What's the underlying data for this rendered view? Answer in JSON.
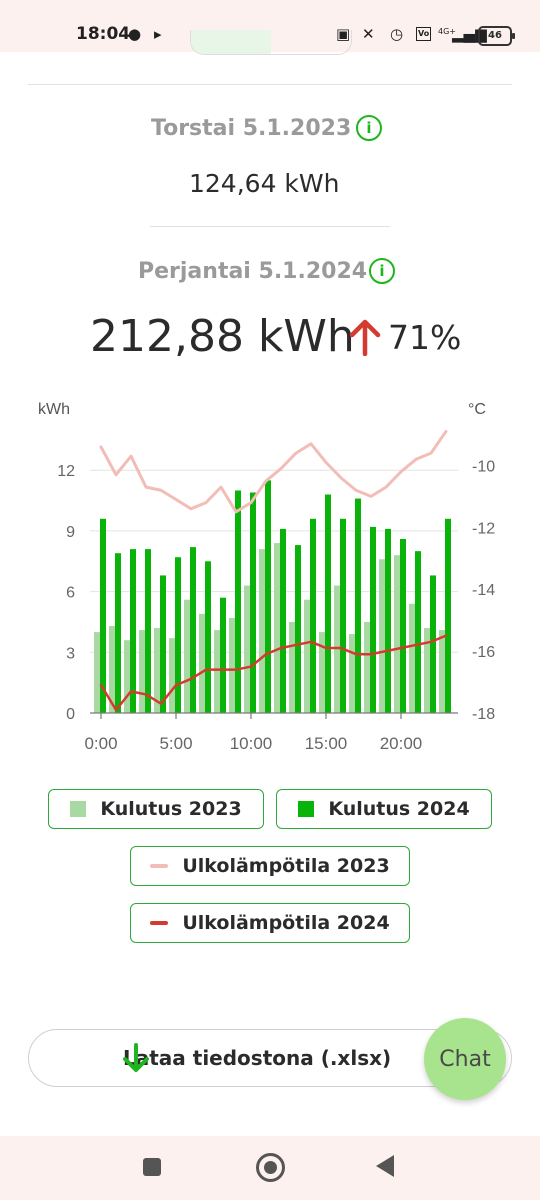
{
  "status_bar": {
    "time": "18:04",
    "battery": "46",
    "network": "4G+",
    "icons": [
      "chat-bubble-icon",
      "play-icon",
      "nfc-icon",
      "mute-icon",
      "alarm-icon",
      "volte-icon",
      "signal-icon",
      "battery-icon"
    ]
  },
  "comparison": {
    "day1": {
      "title": "Torstai 5.1.2023",
      "value": "124,64 kWh"
    },
    "day2": {
      "title": "Perjantai 5.1.2024",
      "value": "212,88 kWh",
      "change": "71%",
      "change_direction": "up"
    }
  },
  "colors": {
    "green": "#0ab30a",
    "light_green": "#a9d9a3",
    "red": "#d43a2f",
    "pink": "#f2bdb6",
    "accent": "#1fb51f"
  },
  "chart_data": {
    "type": "bar",
    "x": [
      0,
      1,
      2,
      3,
      4,
      5,
      6,
      7,
      8,
      9,
      10,
      11,
      12,
      13,
      14,
      15,
      16,
      17,
      18,
      19,
      20,
      21,
      22,
      23
    ],
    "x_ticks": [
      "0:00",
      "5:00",
      "10:00",
      "15:00",
      "20:00"
    ],
    "x_tick_values": [
      0,
      5,
      10,
      15,
      20
    ],
    "y_left_label": "kWh",
    "y_right_label": "°C",
    "y_left_ticks": [
      "0",
      "3",
      "6",
      "9",
      "12"
    ],
    "y_left_tick_values": [
      0,
      3,
      6,
      9,
      12
    ],
    "y_left_lim": [
      0,
      13
    ],
    "y_right_ticks": [
      "-10",
      "-12",
      "-14",
      "-16",
      "-18"
    ],
    "y_right_tick_values": [
      -10,
      -12,
      -14,
      -16,
      -18
    ],
    "y_right_lim": [
      -18,
      -9.5
    ],
    "grid": "horizontal",
    "series": [
      {
        "name": "Kulutus 2023",
        "kind": "bar",
        "color": "#a9d9a3",
        "values": [
          4.0,
          4.3,
          3.6,
          4.1,
          4.2,
          3.7,
          5.6,
          4.9,
          4.1,
          4.7,
          6.3,
          8.1,
          8.4,
          4.5,
          5.6,
          4.0,
          6.3,
          3.9,
          4.5,
          7.6,
          7.8,
          5.4,
          4.2,
          4.1
        ]
      },
      {
        "name": "Kulutus 2024",
        "kind": "bar",
        "color": "#0ab30a",
        "values": [
          9.6,
          7.9,
          8.1,
          8.1,
          6.8,
          7.7,
          8.2,
          7.5,
          5.7,
          11.0,
          10.9,
          11.5,
          9.1,
          8.3,
          9.6,
          10.8,
          9.6,
          10.6,
          9.2,
          9.1,
          8.6,
          8.0,
          6.8,
          9.6
        ]
      },
      {
        "name": "Ulkolämpötila 2023",
        "kind": "line",
        "axis": "right",
        "color": "#f2bdb6",
        "values": [
          -9.4,
          -10.3,
          -9.7,
          -10.7,
          -10.8,
          -11.1,
          -11.4,
          -11.2,
          -10.7,
          -11.5,
          -11.2,
          -10.5,
          -10.1,
          -9.6,
          -9.3,
          -9.9,
          -10.4,
          -10.8,
          -11.0,
          -10.7,
          -10.2,
          -9.8,
          -9.6,
          -8.9
        ]
      },
      {
        "name": "Ulkolämpötila 2024",
        "kind": "line",
        "axis": "right",
        "color": "#d43a2f",
        "values": [
          -17.1,
          -17.9,
          -17.3,
          -17.4,
          -17.7,
          -17.1,
          -16.9,
          -16.6,
          -16.6,
          -16.6,
          -16.5,
          -16.1,
          -15.9,
          -15.8,
          -15.7,
          -15.9,
          -15.9,
          -16.1,
          -16.1,
          -16.0,
          -15.9,
          -15.8,
          -15.7,
          -15.5
        ]
      }
    ],
    "legend_placement": "bottom"
  },
  "legend": {
    "items": [
      {
        "label": "Kulutus 2023",
        "swatch": "box",
        "color": "#a9d9a3"
      },
      {
        "label": "Kulutus 2024",
        "swatch": "box",
        "color": "#0ab30a"
      },
      {
        "label": "Ulkolämpötila 2023",
        "swatch": "line",
        "color": "#f2bdb6"
      },
      {
        "label": "Ulkolämpötila 2024",
        "swatch": "line",
        "color": "#d43a2f"
      }
    ]
  },
  "actions": {
    "download_label": "Lataa tiedostona (.xlsx)",
    "chat_label": "Chat"
  }
}
